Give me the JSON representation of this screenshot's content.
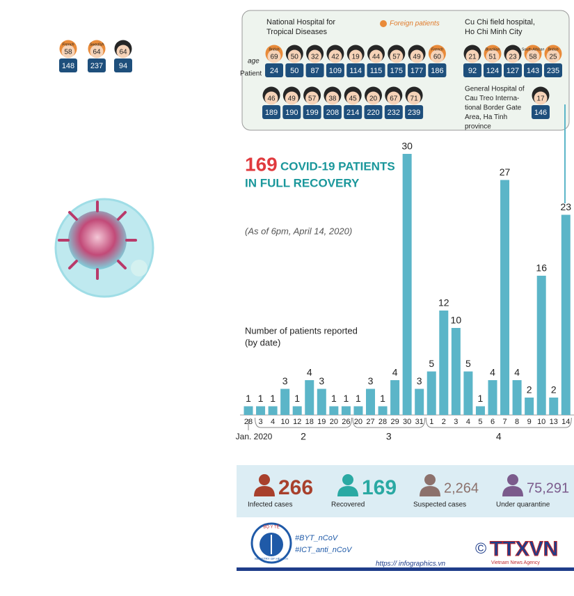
{
  "figures_left": [
    {
      "nationality": "French",
      "age": 58,
      "patient": 148
    },
    {
      "nationality": "Swedish",
      "age": 64,
      "patient": 237
    },
    {
      "age": 64,
      "patient": 94
    }
  ],
  "panel": {
    "legend": "Foreign patients",
    "age_label": "age",
    "patient_label": "Patient",
    "hospitals": [
      {
        "name_lines": [
          "National Hospital for",
          "Tropical Diseases"
        ],
        "rows": [
          [
            {
              "nationality": "British",
              "age": 69,
              "patient": 24
            },
            {
              "age": 50,
              "patient": 50
            },
            {
              "age": 32,
              "patient": 87
            },
            {
              "age": 42,
              "patient": 109
            },
            {
              "age": 19,
              "patient": 114
            },
            {
              "age": 44,
              "patient": 115
            },
            {
              "age": 57,
              "patient": 175
            },
            {
              "age": 49,
              "patient": 177
            },
            {
              "nationality": "French",
              "age": 60,
              "patient": 186
            }
          ],
          [
            {
              "age": 46,
              "patient": 189
            },
            {
              "age": 49,
              "patient": 190
            },
            {
              "age": 57,
              "patient": 199
            },
            {
              "age": 38,
              "patient": 208
            },
            {
              "age": 45,
              "patient": 214
            },
            {
              "age": 20,
              "patient": 220
            },
            {
              "age": 67,
              "patient": 232
            },
            {
              "age": 71,
              "patient": 239
            }
          ]
        ]
      },
      {
        "name_lines": [
          "Cu Chi field hospital,",
          "Ho Chi Minh City"
        ],
        "rows": [
          [
            {
              "age": 21,
              "patient": 92
            },
            {
              "nationality": "Brazilian",
              "age": 51,
              "patient": 124
            },
            {
              "age": 23,
              "patient": 127
            },
            {
              "nationality": "South African",
              "age": 58,
              "patient": 143
            },
            {
              "nationality": "British",
              "age": 25,
              "patient": 235
            }
          ]
        ]
      },
      {
        "name_lines": [
          "General Hospital of",
          "Cau Treo Interna-",
          "tional Border Gate",
          "Area, Ha Tinh",
          "province"
        ],
        "rows": [
          [
            {
              "age": 17,
              "patient": 146
            }
          ]
        ]
      }
    ]
  },
  "chart_data": {
    "type": "bar",
    "title": "169",
    "title_lines": [
      "COVID-19 PATIENTS",
      "IN FULL RECOVERY"
    ],
    "subtitle": "(As of 6pm, April 14, 2020)",
    "y_label_lines": [
      "Number of patients reported",
      "(by date)"
    ],
    "color": "#5bb5c8",
    "groups": [
      {
        "label": "Jan. 2020",
        "days": [
          28
        ],
        "values": [
          1
        ]
      },
      {
        "label": "2",
        "days": [
          3,
          4,
          10,
          12,
          18,
          19,
          20,
          26
        ],
        "values": [
          1,
          1,
          3,
          1,
          4,
          3,
          1,
          1
        ]
      },
      {
        "label": "3",
        "days": [
          20,
          27,
          28,
          29,
          30,
          31
        ],
        "values": [
          1,
          3,
          1,
          4,
          30,
          3
        ]
      },
      {
        "label": "4",
        "days": [
          1,
          2,
          3,
          4,
          5,
          6,
          7,
          8,
          9,
          10,
          13,
          14
        ],
        "values": [
          5,
          12,
          10,
          5,
          1,
          4,
          27,
          4,
          2,
          16,
          2,
          23
        ]
      }
    ]
  },
  "stats": [
    {
      "value": "266",
      "label": "Infected cases",
      "color": "#a8402c"
    },
    {
      "value": "169",
      "label": "Recovered",
      "color": "#2aa9a3"
    },
    {
      "value": "2,264",
      "label": "Suspected cases",
      "color": "#8c716c"
    },
    {
      "value": "75,291",
      "label": "Under quarantine",
      "color": "#7b5b8c"
    }
  ],
  "footer": {
    "hashtags": [
      "#BYT_nCoV",
      "#ICT_anti_nCoV"
    ],
    "url": "https:// infographics.vn",
    "logo_top": "BỘ Y TẾ",
    "logo_bottom": "MINISTRY OF HEALTH",
    "copyright": "©",
    "agency": "TTXVN",
    "agency_sub": "Vietnam News Agency"
  }
}
